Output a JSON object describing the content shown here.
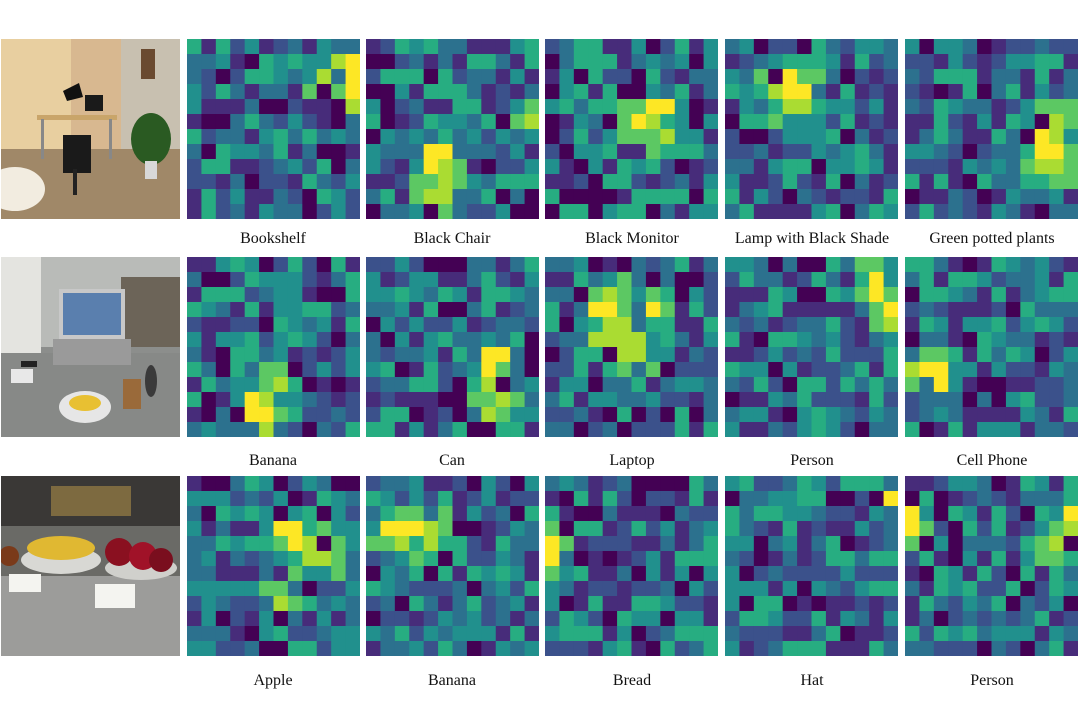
{
  "figure": {
    "palette": [
      "#440154",
      "#472c7a",
      "#3b518b",
      "#2c718e",
      "#21908d",
      "#27ad81",
      "#5cc863",
      "#aadc32",
      "#fde725"
    ],
    "rows": [
      {
        "scene": "office",
        "captions": [
          "Bookshelf",
          "Black Chair",
          "Black Monitor",
          "Lamp with Black Shade",
          "Green potted plants"
        ],
        "hotspot_colors": []
      },
      {
        "scene": "desk",
        "captions": [
          "Banana",
          "Can",
          "Laptop",
          "Person",
          "Cell Phone"
        ]
      },
      {
        "scene": "kitchen",
        "captions": [
          "Apple",
          "Banana",
          "Bread",
          "Hat",
          "Person"
        ]
      }
    ]
  }
}
